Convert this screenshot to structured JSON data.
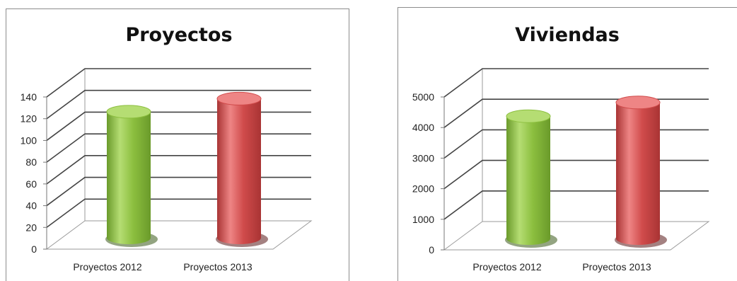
{
  "colors": {
    "green": "#8cbf3f",
    "red": "#d04b4b"
  },
  "chart_data": [
    {
      "type": "bar",
      "title": "Proyectos",
      "categories": [
        "Proyectos 2012",
        "Proyectos 2013"
      ],
      "values": [
        116,
        128
      ],
      "ylim": [
        0,
        140
      ],
      "yticks": [
        "0",
        "20",
        "40",
        "60",
        "80",
        "100",
        "120",
        "140"
      ],
      "grid": true,
      "style": "3d-cylinder"
    },
    {
      "type": "bar",
      "title": "Viviendas",
      "categories": [
        "Proyectos 2012",
        "Proyectos 2013"
      ],
      "values": [
        4000,
        4450
      ],
      "ylim": [
        0,
        5000
      ],
      "yticks": [
        "0",
        "1000",
        "2000",
        "3000",
        "4000",
        "5000"
      ],
      "grid": true,
      "style": "3d-cylinder"
    }
  ]
}
